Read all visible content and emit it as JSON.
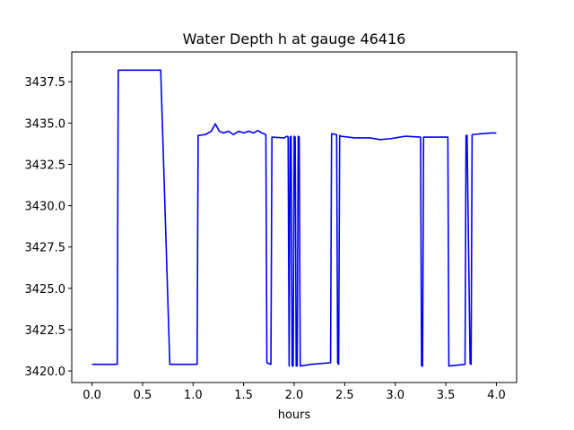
{
  "chart_data": {
    "type": "line",
    "title": "Water Depth h at gauge 46416",
    "xlabel": "hours",
    "ylabel": "",
    "xlim": [
      -0.2,
      4.2
    ],
    "ylim": [
      3419.3,
      3439.3
    ],
    "xticks": [
      0.0,
      0.5,
      1.0,
      1.5,
      2.0,
      2.5,
      3.0,
      3.5,
      4.0
    ],
    "xtick_labels": [
      "0.0",
      "0.5",
      "1.0",
      "1.5",
      "2.0",
      "2.5",
      "3.0",
      "3.5",
      "4.0"
    ],
    "yticks": [
      3420.0,
      3422.5,
      3425.0,
      3427.5,
      3430.0,
      3432.5,
      3435.0,
      3437.5
    ],
    "ytick_labels": [
      "3420.0",
      "3422.5",
      "3425.0",
      "3427.5",
      "3430.0",
      "3432.5",
      "3435.0",
      "3437.5"
    ],
    "grid": false,
    "series": [
      {
        "color": "#0000ff",
        "x": [
          0.0,
          0.25,
          0.26,
          0.68,
          0.77,
          1.04,
          1.05,
          1.12,
          1.18,
          1.22,
          1.26,
          1.3,
          1.35,
          1.4,
          1.45,
          1.5,
          1.55,
          1.6,
          1.64,
          1.68,
          1.72,
          1.73,
          1.77,
          1.78,
          1.9,
          1.93,
          1.94,
          1.95,
          1.96,
          1.97,
          1.98,
          1.99,
          2.0,
          2.01,
          2.02,
          2.03,
          2.04,
          2.05,
          2.06,
          2.17,
          2.36,
          2.37,
          2.42,
          2.43,
          2.44,
          2.45,
          2.46,
          2.6,
          2.75,
          2.85,
          2.95,
          3.1,
          3.25,
          3.26,
          3.27,
          3.28,
          3.38,
          3.52,
          3.53,
          3.69,
          3.7,
          3.71,
          3.74,
          3.75,
          3.76,
          3.85,
          3.95,
          4.0
        ],
        "y": [
          3420.4,
          3420.4,
          3438.2,
          3438.2,
          3420.4,
          3420.4,
          3434.25,
          3434.3,
          3434.5,
          3434.95,
          3434.5,
          3434.4,
          3434.5,
          3434.3,
          3434.5,
          3434.4,
          3434.5,
          3434.4,
          3434.55,
          3434.4,
          3434.3,
          3420.5,
          3420.4,
          3434.15,
          3434.1,
          3434.2,
          3434.15,
          3420.3,
          3434.15,
          3434.2,
          3420.3,
          3420.3,
          3434.2,
          3434.15,
          3420.3,
          3420.3,
          3434.2,
          3434.15,
          3420.3,
          3420.4,
          3420.5,
          3434.35,
          3434.3,
          3420.5,
          3420.4,
          3434.25,
          3434.2,
          3434.1,
          3434.1,
          3434.0,
          3434.05,
          3434.2,
          3434.15,
          3420.3,
          3420.3,
          3434.15,
          3434.15,
          3434.15,
          3420.3,
          3420.4,
          3434.25,
          3434.25,
          3420.45,
          3420.4,
          3434.3,
          3434.35,
          3434.4,
          3434.4
        ]
      }
    ]
  }
}
